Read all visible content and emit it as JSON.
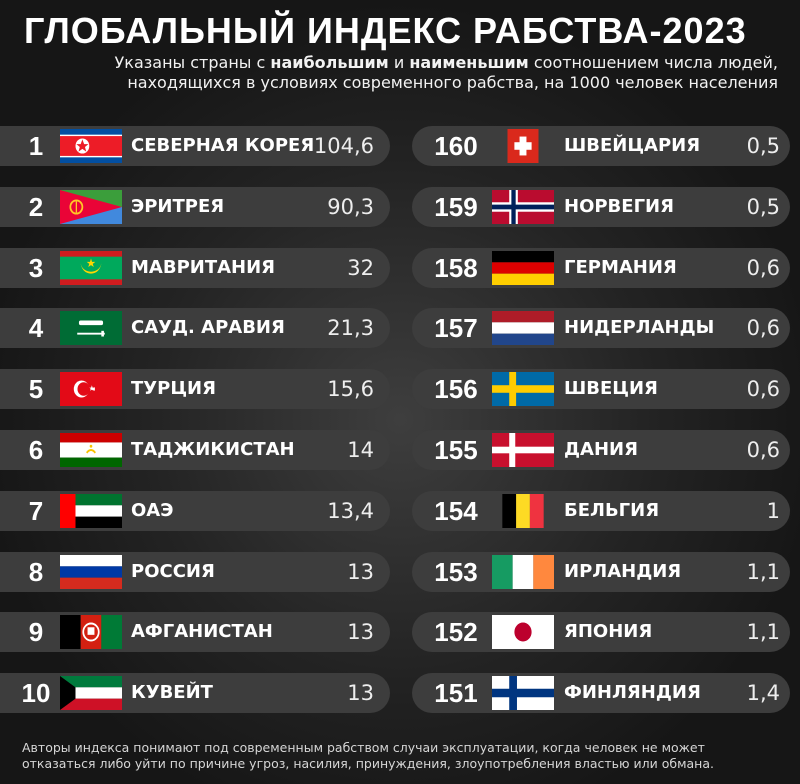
{
  "title": "ГЛОБАЛЬНЫЙ ИНДЕКС РАБСТВА-2023",
  "subtitle": {
    "part1": "Указаны страны с ",
    "bold1": "наибольшим",
    "part2": " и ",
    "bold2": "наименьшим",
    "part3": " соотношением числа людей,",
    "line2": "находящихся в условиях современного рабства, на 1000 человек населения"
  },
  "left": [
    {
      "rank": "1",
      "country": "СЕВЕРНАЯ КОРЕЯ",
      "value": "104,6",
      "flag": "north-korea"
    },
    {
      "rank": "2",
      "country": "ЭРИТРЕЯ",
      "value": "90,3",
      "flag": "eritrea"
    },
    {
      "rank": "3",
      "country": "МАВРИТАНИЯ",
      "value": "32",
      "flag": "mauritania"
    },
    {
      "rank": "4",
      "country": "САУД. АРАВИЯ",
      "value": "21,3",
      "flag": "saudi-arabia"
    },
    {
      "rank": "5",
      "country": "ТУРЦИЯ",
      "value": "15,6",
      "flag": "turkey"
    },
    {
      "rank": "6",
      "country": "ТАДЖИКИСТАН",
      "value": "14",
      "flag": "tajikistan"
    },
    {
      "rank": "7",
      "country": "ОАЭ",
      "value": "13,4",
      "flag": "uae"
    },
    {
      "rank": "8",
      "country": "РОССИЯ",
      "value": "13",
      "flag": "russia"
    },
    {
      "rank": "9",
      "country": "АФГАНИСТАН",
      "value": "13",
      "flag": "afghanistan"
    },
    {
      "rank": "10",
      "country": "КУВЕЙТ",
      "value": "13",
      "flag": "kuwait"
    }
  ],
  "right": [
    {
      "rank": "160",
      "country": "ШВЕЙЦАРИЯ",
      "value": "0,5",
      "flag": "switzerland"
    },
    {
      "rank": "159",
      "country": "НОРВЕГИЯ",
      "value": "0,5",
      "flag": "norway"
    },
    {
      "rank": "158",
      "country": "ГЕРМАНИЯ",
      "value": "0,6",
      "flag": "germany"
    },
    {
      "rank": "157",
      "country": "НИДЕРЛАНДЫ",
      "value": "0,6",
      "flag": "netherlands"
    },
    {
      "rank": "156",
      "country": "ШВЕЦИЯ",
      "value": "0,6",
      "flag": "sweden"
    },
    {
      "rank": "155",
      "country": "ДАНИЯ",
      "value": "0,6",
      "flag": "denmark"
    },
    {
      "rank": "154",
      "country": "БЕЛЬГИЯ",
      "value": "1",
      "flag": "belgium"
    },
    {
      "rank": "153",
      "country": "ИРЛАНДИЯ",
      "value": "1,1",
      "flag": "ireland"
    },
    {
      "rank": "152",
      "country": "ЯПОНИЯ",
      "value": "1,1",
      "flag": "japan"
    },
    {
      "rank": "151",
      "country": "ФИНЛЯНДИЯ",
      "value": "1,4",
      "flag": "finland"
    }
  ],
  "footnote": "Авторы индекса понимают под современным рабством случаи эксплуатации, когда человек не может отказаться либо уйти по причине угроз, насилия, принуждения, злоупотребления властью или обмана."
}
